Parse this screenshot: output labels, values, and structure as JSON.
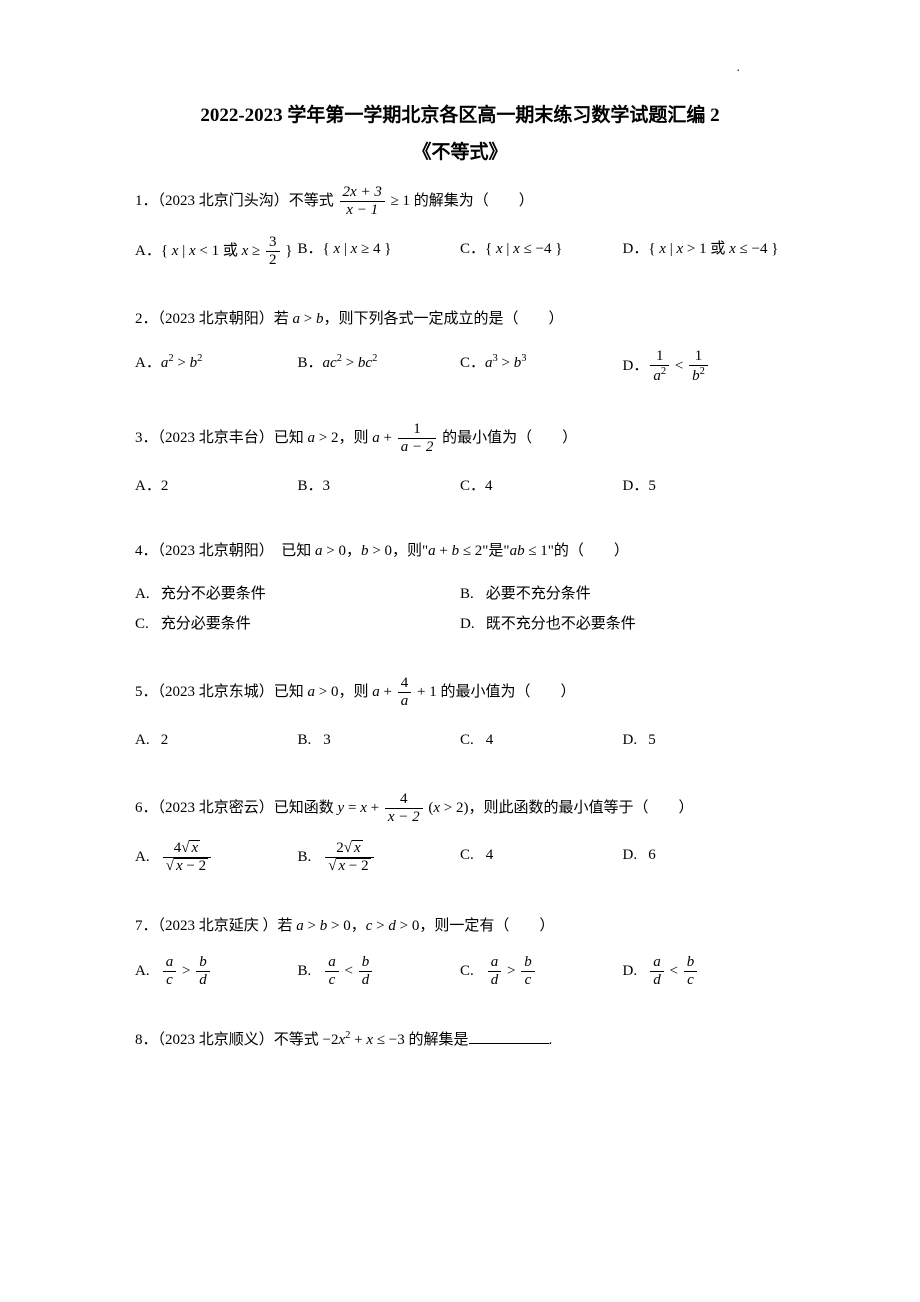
{
  "title": "2022-2023 学年第一学期北京各区高一期末练习数学试题汇编 2",
  "subtitle": "《不等式》",
  "problems": [
    {
      "num": "1．",
      "source": "（2023 北京门头沟）",
      "stem_before": "不等式 ",
      "frac_num": "2x + 3",
      "frac_den": "x − 1",
      "stem_after": " ≥ 1 的解集为（　　）",
      "options": [
        {
          "label": "A．",
          "html": "{ <span class='ital'>x</span> | <span class='ital'>x</span> &lt; 1 或 <span class='ital'>x</span> ≥ <span class='frac'><span class='num'>3</span><span class='den'>2</span></span> }"
        },
        {
          "label": "B．",
          "html": "{ <span class='ital'>x</span> | <span class='ital'>x</span> ≥ 4 }"
        },
        {
          "label": "C．",
          "html": "{ <span class='ital'>x</span> | <span class='ital'>x</span> ≤ −4 }"
        },
        {
          "label": "D．",
          "html": "{ <span class='ital'>x</span> | <span class='ital'>x</span> &gt; 1 或 <span class='ital'>x</span> ≤ −4 }"
        }
      ]
    },
    {
      "num": "2．",
      "source": "（2023 北京朝阳）",
      "stem": "若 <span class='ital'>a</span> &gt; <span class='ital'>b</span>，则下列各式一定成立的是（　　）",
      "options": [
        {
          "label": "A．",
          "html": "<span class='ital'>a</span><span class='sup'>2</span> &gt; <span class='ital'>b</span><span class='sup'>2</span>"
        },
        {
          "label": "B．",
          "html": "<span class='ital'>ac</span><span class='sup'>2</span> &gt; <span class='ital'>bc</span><span class='sup'>2</span>"
        },
        {
          "label": "C．",
          "html": "<span class='ital'>a</span><span class='sup'>3</span> &gt; <span class='ital'>b</span><span class='sup'>3</span>"
        },
        {
          "label": "D．",
          "html": "<span class='frac'><span class='num'>1</span><span class='den'><span class='ital'>a</span><span class='sup'>2</span></span></span> &lt; <span class='frac'><span class='num'>1</span><span class='den'><span class='ital'>b</span><span class='sup'>2</span></span></span>"
        }
      ]
    },
    {
      "num": "3．",
      "source": "（2023 北京丰台）",
      "stem_before": "已知 <span class='ital'>a</span> &gt; 2，则 <span class='ital'>a</span> + ",
      "frac_num": "1",
      "frac_den": "a − 2",
      "stem_after": " 的最小值为（　　）",
      "options": [
        {
          "label": "A．",
          "html": "2"
        },
        {
          "label": "B．",
          "html": "3"
        },
        {
          "label": "C．",
          "html": "4"
        },
        {
          "label": "D．",
          "html": "5"
        }
      ]
    },
    {
      "num": "4．",
      "source": "（2023 北京朝阳）",
      "stem": "　已知 <span class='ital'>a</span> &gt; 0，<span class='ital'>b</span> &gt; 0，则\"<span class='ital'>a</span> + <span class='ital'>b</span> ≤ 2\"是\"<span class='ital'>ab</span> ≤ 1\"的（　　）",
      "options2": [
        {
          "label": "A.",
          "text": "充分不必要条件"
        },
        {
          "label": "B.",
          "text": "必要不充分条件"
        },
        {
          "label": "C.",
          "text": "充分必要条件"
        },
        {
          "label": "D.",
          "text": "既不充分也不必要条件"
        }
      ]
    },
    {
      "num": "5．",
      "source": "（2023 北京东城）",
      "stem_before": "已知 <span class='ital'>a</span> &gt; 0，则 <span class='ital'>a</span> + ",
      "frac_num": "4",
      "frac_den": "a",
      "stem_after": " + 1 的最小值为（　　）",
      "options": [
        {
          "label": "A.",
          "html": "2"
        },
        {
          "label": "B.",
          "html": "3"
        },
        {
          "label": "C.",
          "html": "4"
        },
        {
          "label": "D.",
          "html": "5"
        }
      ]
    },
    {
      "num": "6．",
      "source": "（2023 北京密云）",
      "stem_before": "已知函数 <span class='ital'>y</span> = <span class='ital'>x</span> + ",
      "frac_num": "4",
      "frac_den": "x − 2",
      "stem_after": " (<span class='ital'>x</span> &gt; 2)，则此函数的最小值等于（　　）",
      "options": [
        {
          "label": "A.",
          "html": "<span class='frac'><span class='num'>4<span class='radic'>√</span><span class='sqrt'><span class='ital'>x</span></span></span><span class='den'><span class='radic'>√</span><span class='sqrt'><span class='ital'>x</span> − 2</span></span></span>"
        },
        {
          "label": "B.",
          "html": "<span class='frac'><span class='num'>2<span class='radic'>√</span><span class='sqrt'><span class='ital'>x</span></span></span><span class='den'><span class='radic'>√</span><span class='sqrt'><span class='ital'>x</span> − 2</span></span></span>"
        },
        {
          "label": "C.",
          "html": "4"
        },
        {
          "label": "D.",
          "html": "6"
        }
      ]
    },
    {
      "num": "7．",
      "source": "（2023 北京延庆 ）",
      "stem": "若 <span class='ital'>a</span> &gt; <span class='ital'>b</span> &gt; 0，<span class='ital'>c</span> &gt; <span class='ital'>d</span> &gt; 0，则一定有（　　）",
      "options": [
        {
          "label": "A.",
          "html": "<span class='frac'><span class='num'><span class='ital'>a</span></span><span class='den'><span class='ital'>c</span></span></span> &gt; <span class='frac'><span class='num'><span class='ital'>b</span></span><span class='den'><span class='ital'>d</span></span></span>"
        },
        {
          "label": "B.",
          "html": "<span class='frac'><span class='num'><span class='ital'>a</span></span><span class='den'><span class='ital'>c</span></span></span> &lt; <span class='frac'><span class='num'><span class='ital'>b</span></span><span class='den'><span class='ital'>d</span></span></span>"
        },
        {
          "label": "C.",
          "html": "<span class='frac'><span class='num'><span class='ital'>a</span></span><span class='den'><span class='ital'>d</span></span></span> &gt; <span class='frac'><span class='num'><span class='ital'>b</span></span><span class='den'><span class='ital'>c</span></span></span>"
        },
        {
          "label": "D.",
          "html": "<span class='frac'><span class='num'><span class='ital'>a</span></span><span class='den'><span class='ital'>d</span></span></span> &lt; <span class='frac'><span class='num'><span class='ital'>b</span></span><span class='den'><span class='ital'>c</span></span></span>"
        }
      ]
    },
    {
      "num": "8．",
      "source": "（2023 北京顺义）",
      "stem_fill": "不等式 −2<span class='ital'>x</span><span class='sup'>2</span> + <span class='ital'>x</span> ≤ −3 的解集是"
    }
  ],
  "colors": {
    "text": "#000000",
    "background": "#ffffff"
  }
}
